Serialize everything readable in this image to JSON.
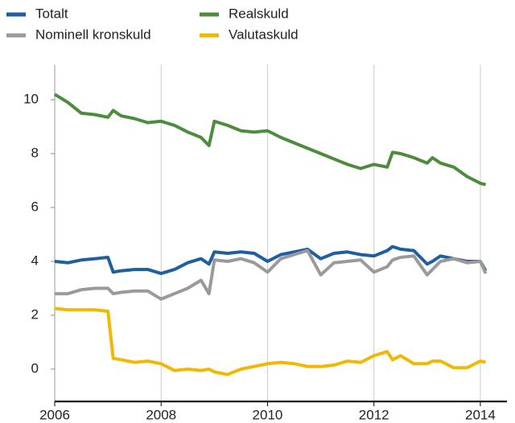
{
  "chart_data": {
    "type": "line",
    "x": [
      2006,
      2006.25,
      2006.5,
      2006.75,
      2007,
      2007.1,
      2007.25,
      2007.5,
      2007.75,
      2008,
      2008.25,
      2008.5,
      2008.75,
      2008.9,
      2009,
      2009.25,
      2009.5,
      2009.75,
      2010,
      2010.25,
      2010.5,
      2010.75,
      2011,
      2011.25,
      2011.5,
      2011.75,
      2012,
      2012.25,
      2012.35,
      2012.5,
      2012.75,
      2013,
      2013.1,
      2013.25,
      2013.5,
      2013.75,
      2014,
      2014.1
    ],
    "series": [
      {
        "name": "Totalt",
        "color": "#1f5fa0",
        "values": [
          4.0,
          3.95,
          4.05,
          4.1,
          4.15,
          3.6,
          3.65,
          3.7,
          3.7,
          3.55,
          3.7,
          3.95,
          4.1,
          3.9,
          4.35,
          4.3,
          4.35,
          4.3,
          4.0,
          4.25,
          4.35,
          4.45,
          4.1,
          4.3,
          4.35,
          4.25,
          4.2,
          4.4,
          4.55,
          4.45,
          4.4,
          3.9,
          4.0,
          4.2,
          4.1,
          4.0,
          4.0,
          3.65
        ]
      },
      {
        "name": "Nominell kronskuld",
        "color": "#9a9a9a",
        "values": [
          2.8,
          2.8,
          2.95,
          3.0,
          3.0,
          2.8,
          2.85,
          2.9,
          2.9,
          2.6,
          2.8,
          3.0,
          3.3,
          2.8,
          4.05,
          4.0,
          4.1,
          3.95,
          3.6,
          4.1,
          4.25,
          4.4,
          3.5,
          3.95,
          4.0,
          4.05,
          3.6,
          3.8,
          4.05,
          4.15,
          4.2,
          3.5,
          3.7,
          4.0,
          4.1,
          3.95,
          4.0,
          3.55
        ]
      },
      {
        "name": "Realskuld",
        "color": "#4d8c3c",
        "values": [
          10.2,
          9.9,
          9.5,
          9.45,
          9.35,
          9.6,
          9.4,
          9.3,
          9.15,
          9.2,
          9.05,
          8.8,
          8.6,
          8.3,
          9.2,
          9.05,
          8.85,
          8.8,
          8.85,
          8.6,
          8.4,
          8.2,
          8.0,
          7.8,
          7.6,
          7.45,
          7.6,
          7.5,
          8.05,
          8.0,
          7.85,
          7.65,
          7.85,
          7.65,
          7.5,
          7.15,
          6.9,
          6.85
        ]
      },
      {
        "name": "Valutaskuld",
        "color": "#f2b800",
        "values": [
          2.25,
          2.2,
          2.2,
          2.2,
          2.15,
          0.4,
          0.35,
          0.25,
          0.3,
          0.2,
          -0.05,
          0.0,
          -0.05,
          0.0,
          -0.1,
          -0.2,
          0.0,
          0.1,
          0.2,
          0.25,
          0.2,
          0.1,
          0.1,
          0.15,
          0.3,
          0.25,
          0.5,
          0.65,
          0.35,
          0.5,
          0.2,
          0.2,
          0.3,
          0.3,
          0.05,
          0.05,
          0.3,
          0.25
        ]
      }
    ],
    "xlim": [
      2006,
      2014.5
    ],
    "xticks": [
      2006,
      2008,
      2010,
      2012,
      2014
    ],
    "ylim": [
      -1.2,
      11.3
    ],
    "yticks": [
      0,
      2,
      4,
      6,
      8,
      10
    ],
    "grid": true
  }
}
